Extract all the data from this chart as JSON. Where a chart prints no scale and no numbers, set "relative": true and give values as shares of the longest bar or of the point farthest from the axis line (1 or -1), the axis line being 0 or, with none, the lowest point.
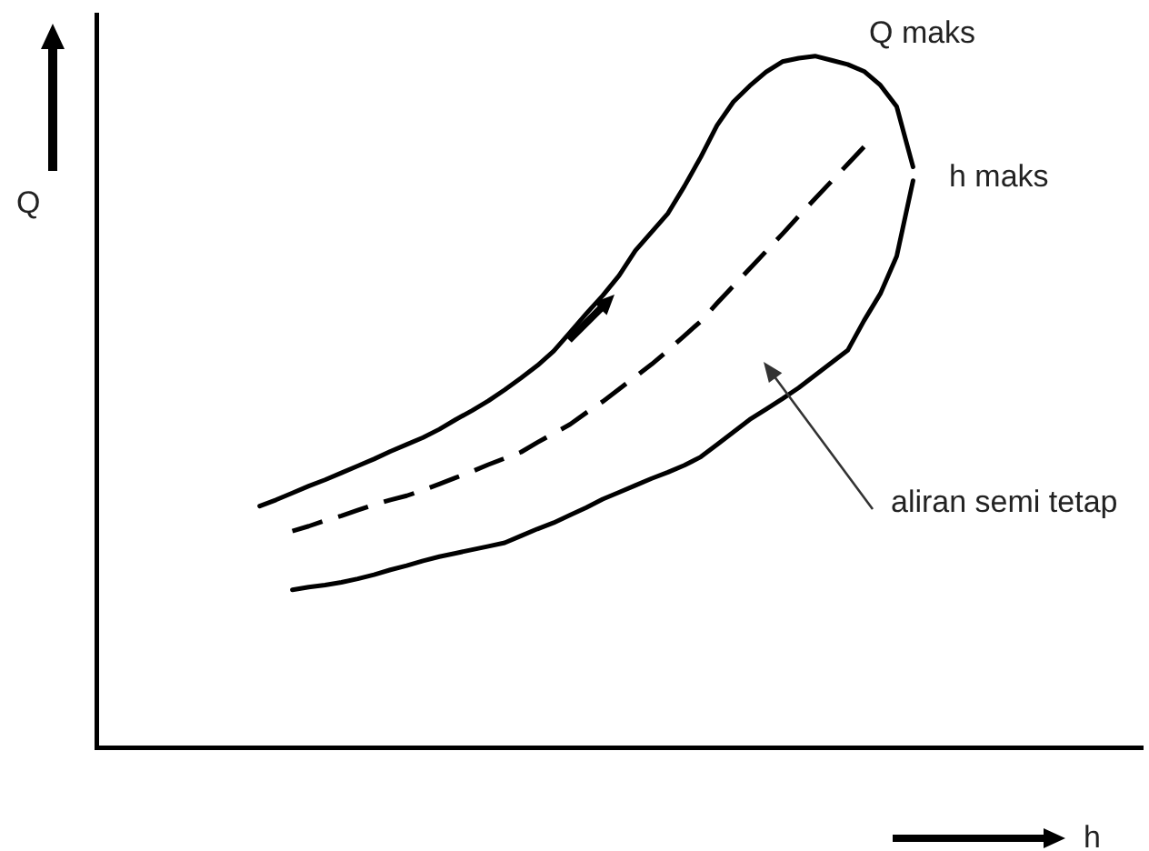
{
  "chart_data": {
    "type": "line",
    "relative": true,
    "xlabel": "h",
    "ylabel": "Q",
    "annotations": [
      "Q maks",
      "h maks",
      "aliran semi tetap"
    ],
    "categories": [
      null,
      null,
      null,
      null,
      null,
      null,
      null,
      null,
      null,
      null,
      null,
      null,
      null,
      null,
      null,
      null,
      null,
      null,
      null,
      null,
      null,
      null,
      null,
      null,
      null,
      null,
      null,
      null,
      null,
      null,
      null,
      null,
      null,
      null,
      null,
      null,
      null,
      null,
      null,
      null,
      null,
      null,
      null,
      null,
      null,
      null,
      null,
      null,
      null,
      null,
      null,
      null,
      null,
      null,
      null,
      null,
      null,
      null,
      null,
      null,
      null,
      null,
      null,
      null,
      null
    ],
    "series": [
      {
        "color": "#000000",
        "line_style": "solid",
        "values": [
          null,
          null,
          null,
          null,
          null,
          null,
          null,
          null,
          null,
          null,
          0.35,
          0.359,
          0.369,
          0.379,
          0.388,
          0.398,
          0.408,
          0.418,
          0.429,
          0.439,
          0.449,
          0.461,
          0.475,
          0.488,
          0.502,
          0.518,
          0.535,
          0.553,
          0.574,
          0.601,
          0.628,
          0.654,
          0.683,
          0.719,
          0.746,
          0.773,
          0.812,
          0.854,
          0.9,
          0.934,
          0.957,
          0.977,
          0.992,
          0.997,
          1.0,
          0.994,
          0.988,
          0.978,
          0.958,
          0.927,
          0.84,
          null,
          null,
          null,
          null,
          null,
          null,
          null,
          null,
          null,
          null,
          null,
          null,
          null,
          null
        ]
      },
      {
        "color": "#000000",
        "line_style": "solid",
        "values": [
          null,
          null,
          null,
          null,
          null,
          null,
          null,
          null,
          null,
          null,
          null,
          null,
          0.229,
          0.233,
          0.236,
          0.24,
          0.245,
          0.251,
          0.258,
          0.264,
          0.271,
          0.277,
          0.282,
          0.287,
          0.292,
          0.297,
          0.307,
          0.317,
          0.326,
          0.337,
          0.348,
          0.36,
          0.37,
          0.38,
          0.39,
          0.399,
          0.409,
          0.421,
          0.439,
          0.457,
          0.475,
          0.49,
          0.505,
          0.521,
          0.539,
          0.557,
          0.575,
          0.618,
          0.657,
          0.711,
          0.82,
          null,
          null,
          null,
          null,
          null,
          null,
          null,
          null,
          null,
          null,
          null,
          null,
          null,
          null
        ]
      },
      {
        "color": "#000000",
        "line_style": "dashed",
        "values": [
          null,
          null,
          null,
          null,
          null,
          null,
          null,
          null,
          null,
          null,
          null,
          null,
          0.314,
          0.321,
          0.329,
          0.336,
          0.344,
          0.352,
          0.359,
          0.365,
          0.373,
          0.382,
          0.391,
          0.4,
          0.41,
          0.419,
          0.428,
          0.442,
          0.455,
          0.468,
          0.485,
          0.501,
          0.519,
          0.537,
          0.555,
          0.575,
          0.596,
          0.617,
          0.643,
          0.668,
          0.693,
          0.718,
          0.743,
          0.769,
          0.794,
          0.819,
          0.844,
          0.869,
          null,
          null,
          null,
          null,
          null,
          null,
          null,
          null,
          null,
          null,
          null,
          null,
          null,
          null,
          null,
          null,
          null
        ]
      }
    ],
    "marker": "none"
  }
}
